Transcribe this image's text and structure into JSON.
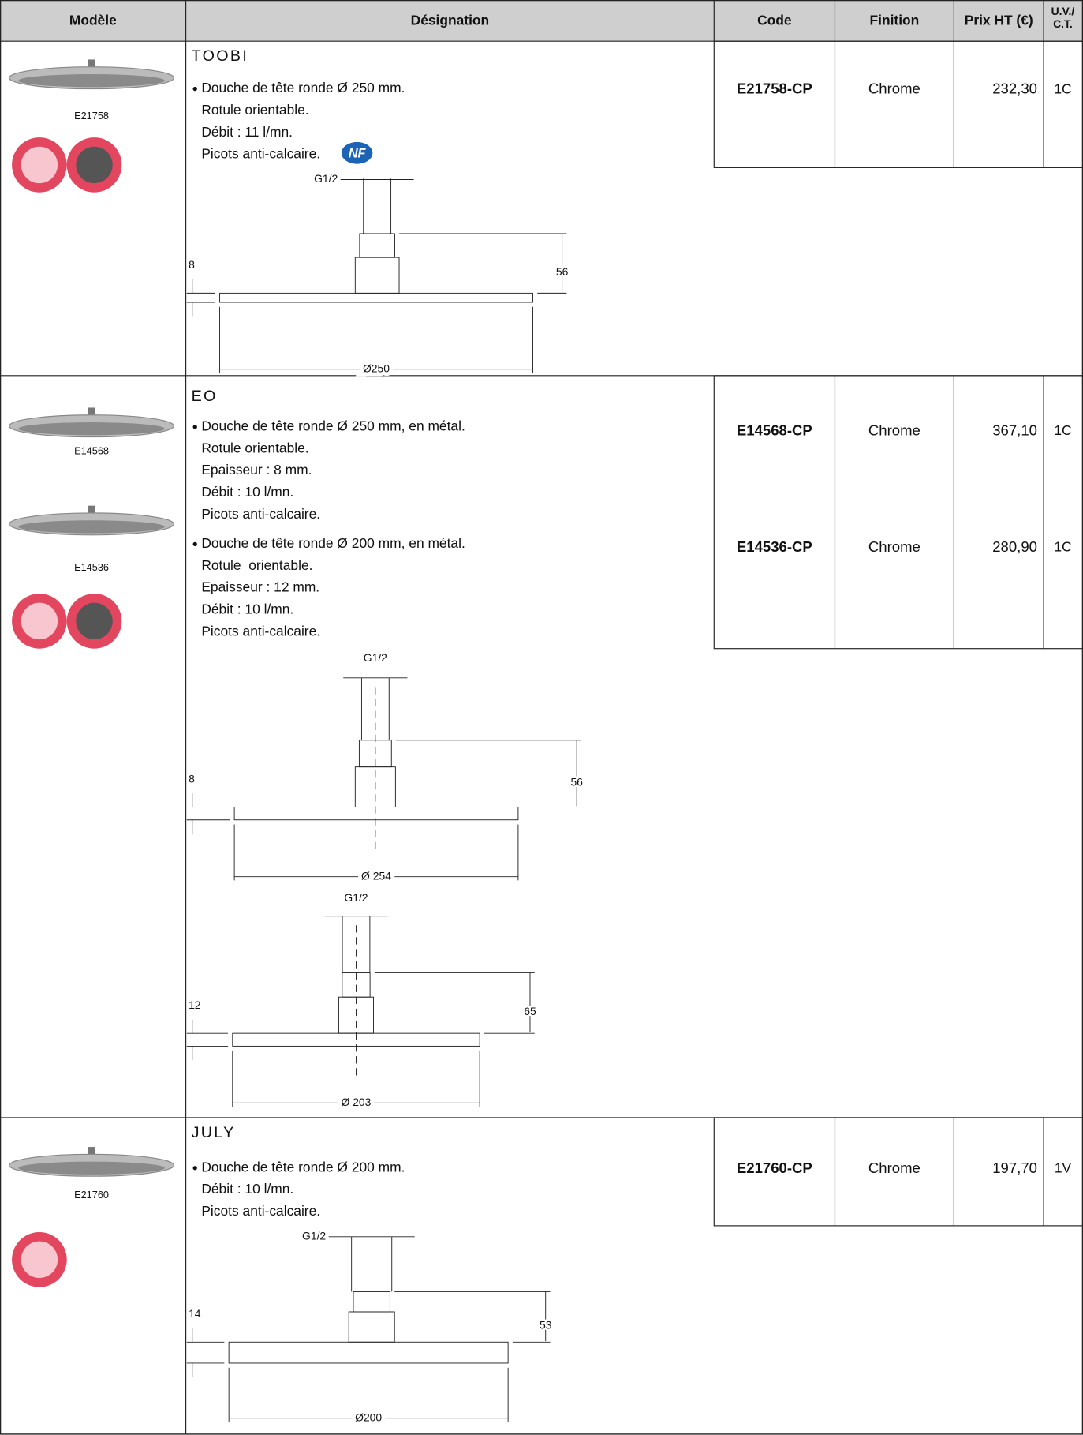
{
  "header": {
    "cols": [
      "Modèle",
      "Désignation",
      "Code",
      "Finition",
      "Prix HT (€)"
    ],
    "uv": [
      "U.V./",
      "C.T."
    ]
  },
  "products": [
    {
      "name": "TOOBI",
      "models": [
        "E21758"
      ],
      "bullets": [
        [
          "Douche de tête ronde Ø 250 mm.",
          "Rotule orientable.",
          "Débit : 11 l/mn.",
          "Picots anti-calcaire."
        ]
      ],
      "badge": "NF",
      "refs": [
        {
          "code": "E21758-CP",
          "finish": "Chrome",
          "price": "232,30",
          "uv": "1C"
        }
      ],
      "drawings": [
        {
          "pipe": "G1/2",
          "height": "56",
          "thickness": "8",
          "diameter": "Ø250"
        }
      ]
    },
    {
      "name": "EO",
      "models": [
        "E14568",
        "E14536"
      ],
      "bullets": [
        [
          "Douche de tête ronde Ø 250 mm, en métal.",
          "Rotule orientable.",
          "Epaisseur : 8 mm.",
          "Débit : 10 l/mn.",
          "Picots anti-calcaire."
        ],
        [
          "Douche de tête ronde Ø 200 mm, en métal.",
          "Rotule  orientable.",
          "Epaisseur : 12 mm.",
          "Débit : 10 l/mn.",
          "Picots anti-calcaire."
        ]
      ],
      "refs": [
        {
          "code": "E14568-CP",
          "finish": "Chrome",
          "price": "367,10",
          "uv": "1C"
        },
        {
          "code": "E14536-CP",
          "finish": "Chrome",
          "price": "280,90",
          "uv": "1C"
        }
      ],
      "drawings": [
        {
          "pipe": "G1/2",
          "height": "56",
          "thickness": "8",
          "diameter": "Ø 254"
        },
        {
          "pipe": "G1/2",
          "height": "65",
          "thickness": "12",
          "diameter": "Ø 203"
        }
      ]
    },
    {
      "name": "JULY",
      "models": [
        "E21760"
      ],
      "bullets": [
        [
          "Douche de tête ronde Ø 200 mm.",
          "Débit : 10 l/mn.",
          "Picots anti-calcaire."
        ]
      ],
      "refs": [
        {
          "code": "E21760-CP",
          "finish": "Chrome",
          "price": "197,70",
          "uv": "1V"
        }
      ],
      "drawings": [
        {
          "pipe": "G1/2",
          "height": "53",
          "thickness": "14",
          "diameter": "Ø200"
        }
      ]
    }
  ]
}
